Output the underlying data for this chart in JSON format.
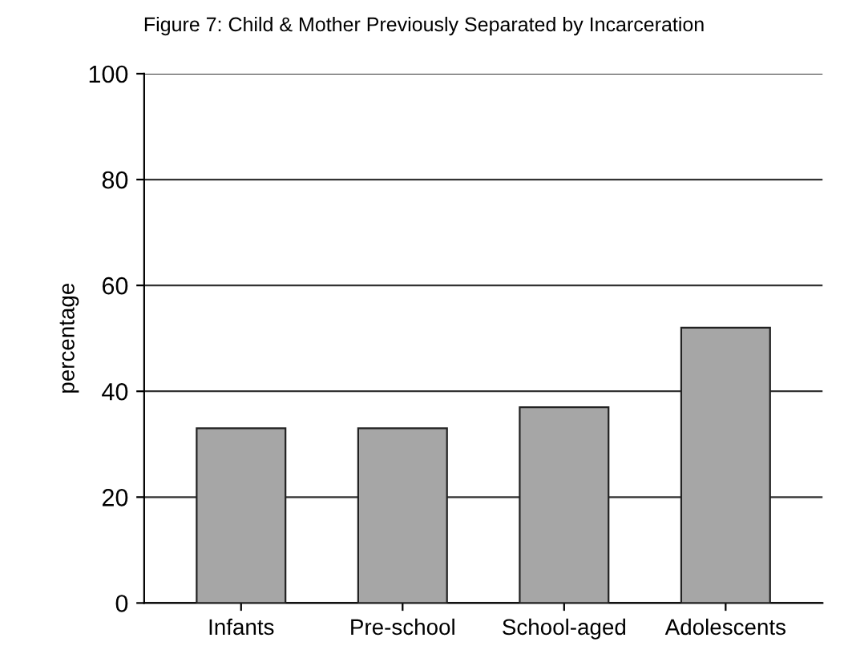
{
  "chart_data": {
    "type": "bar",
    "title": "Figure 7: Child & Mother Previously Separated by Incarceration",
    "ylabel": "percentage",
    "categories": [
      "Infants",
      "Pre-school",
      "School-aged",
      "Adolescents"
    ],
    "values": [
      33,
      33,
      37,
      52
    ],
    "color": "#a6a6a6",
    "ylim": [
      0,
      100
    ],
    "yticks": [
      0,
      20,
      40,
      60,
      80,
      100
    ],
    "grid": "y"
  }
}
